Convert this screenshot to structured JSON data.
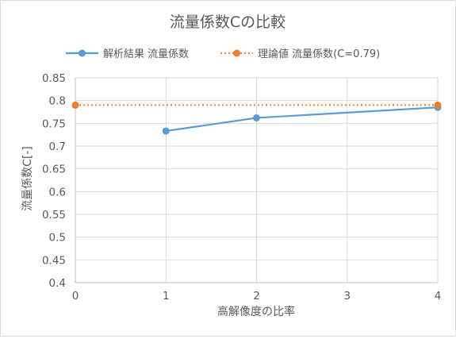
{
  "chart_data": {
    "type": "line",
    "title": "流量係数Cの比較",
    "xlabel": "高解像度の比率",
    "ylabel": "流量係数C[-]",
    "xlim": [
      0,
      4
    ],
    "ylim": [
      0.4,
      0.85
    ],
    "x_ticks": [
      "0",
      "1",
      "2",
      "3",
      "4"
    ],
    "y_ticks": [
      "0.4",
      "0.45",
      "0.5",
      "0.55",
      "0.6",
      "0.65",
      "0.7",
      "0.75",
      "0.8",
      "0.85"
    ],
    "grid": true,
    "legend_position": "top",
    "series": [
      {
        "name": "解析結果 流量係数",
        "color": "#5b9bd5",
        "style": "solid",
        "points": [
          [
            1,
            0.733
          ],
          [
            2,
            0.762
          ],
          [
            4,
            0.785
          ]
        ]
      },
      {
        "name": "理論値 流量係数(C=0.79)",
        "color": "#ed7d31",
        "style": "dotted",
        "points": [
          [
            0,
            0.79
          ],
          [
            4,
            0.79
          ]
        ]
      }
    ]
  }
}
